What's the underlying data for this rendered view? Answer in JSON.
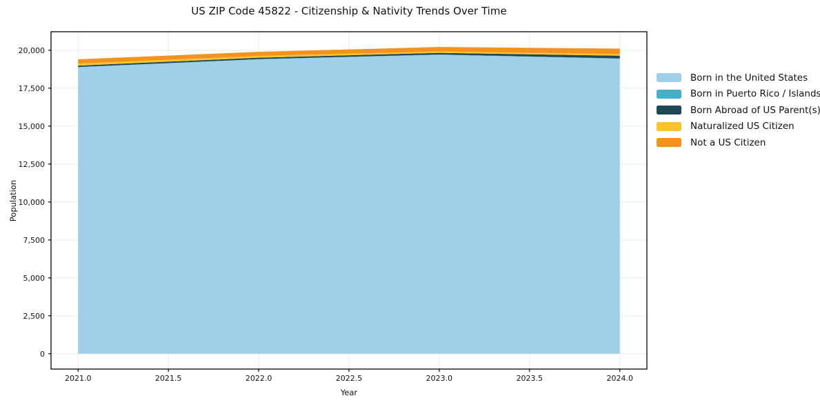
{
  "chart_data": {
    "type": "area",
    "stacked": true,
    "title": "US ZIP Code 45822 - Citizenship & Nativity Trends Over Time",
    "xlabel": "Year",
    "ylabel": "Population",
    "x": [
      2021,
      2022,
      2023,
      2024
    ],
    "series": [
      {
        "name": "Born in the United States",
        "color": "#9fd0e7",
        "values": [
          18880,
          19400,
          19700,
          19440
        ]
      },
      {
        "name": "Born in Puerto Rico / Islands",
        "color": "#46aec6",
        "values": [
          15,
          15,
          20,
          20
        ]
      },
      {
        "name": "Born Abroad of US Parent(s)",
        "color": "#1f4857",
        "values": [
          90,
          95,
          110,
          180
        ]
      },
      {
        "name": "Naturalized US Citizen",
        "color": "#fdc32b",
        "values": [
          140,
          115,
          95,
          110
        ]
      },
      {
        "name": "Not a US Citizen",
        "color": "#f5921e",
        "values": [
          280,
          270,
          290,
          360
        ]
      }
    ],
    "xticks": [
      2021.0,
      2021.5,
      2022.0,
      2022.5,
      2023.0,
      2023.5,
      2024.0
    ],
    "xtick_labels": [
      "2021.0",
      "2021.5",
      "2022.0",
      "2022.5",
      "2023.0",
      "2023.5",
      "2024.0"
    ],
    "yticks": [
      0,
      2500,
      5000,
      7500,
      10000,
      12500,
      15000,
      17500,
      20000
    ],
    "ytick_labels": [
      "0",
      "2,500",
      "5,000",
      "7,500",
      "10,000",
      "12,500",
      "15,000",
      "17,500",
      "20,000"
    ],
    "xlim": [
      2020.85,
      2024.15
    ],
    "ylim": [
      -1010,
      21220
    ],
    "grid": true,
    "grid_color": "#ebebeb",
    "spine_color": "#000000",
    "legend_position": "right outside"
  }
}
